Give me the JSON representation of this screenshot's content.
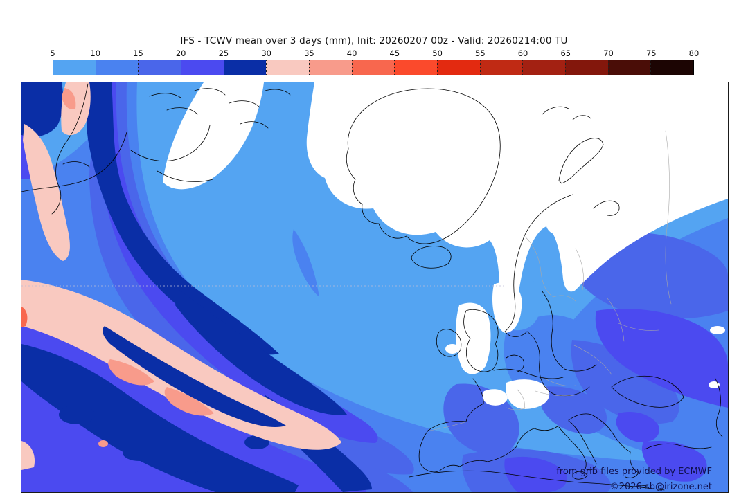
{
  "title": "IFS - TCWV mean over 3 days (mm), Init: 20260207 00z - Valid: 20260214:00 TU",
  "colorbar": {
    "unit": "mm",
    "ticks": [
      "5",
      "10",
      "15",
      "20",
      "25",
      "30",
      "35",
      "40",
      "45",
      "50",
      "55",
      "60",
      "65",
      "70",
      "75",
      "80"
    ],
    "segments": [
      {
        "range": "5-10",
        "color": "#54a4f2"
      },
      {
        "range": "10-15",
        "color": "#4a82f0"
      },
      {
        "range": "15-20",
        "color": "#4a66ea"
      },
      {
        "range": "20-25",
        "color": "#4b4af0"
      },
      {
        "range": "25-30",
        "color": "#0a2ea6"
      },
      {
        "range": "30-35",
        "color": "#f9c9c0"
      },
      {
        "range": "35-40",
        "color": "#f89b8b"
      },
      {
        "range": "40-45",
        "color": "#f8674e"
      },
      {
        "range": "45-50",
        "color": "#fb4a2c"
      },
      {
        "range": "50-55",
        "color": "#e32a10"
      },
      {
        "range": "55-60",
        "color": "#c02a14"
      },
      {
        "range": "60-65",
        "color": "#a32112"
      },
      {
        "range": "65-70",
        "color": "#83170c"
      },
      {
        "range": "70-75",
        "color": "#4a0d07"
      },
      {
        "range": "75-80",
        "color": "#1c0503"
      }
    ]
  },
  "map": {
    "colors": {
      "below5_white": "#ffffff",
      "c5_10": "#54a4f2",
      "c10_15": "#4a82f0",
      "c15_20": "#4a66ea",
      "c20_25": "#4b4af0",
      "c25_30": "#0a2ea6",
      "c30_35": "#f9c9c0",
      "c35_40": "#f89b8b",
      "c40_45": "#f8674e",
      "coastline": "#000000",
      "country_border": "#a8a8a8",
      "attribution_text": "#10104e"
    }
  },
  "attribution": {
    "line1": "from grib files provided by ECMWF",
    "line2": "©2026 sb@irizone.net"
  }
}
